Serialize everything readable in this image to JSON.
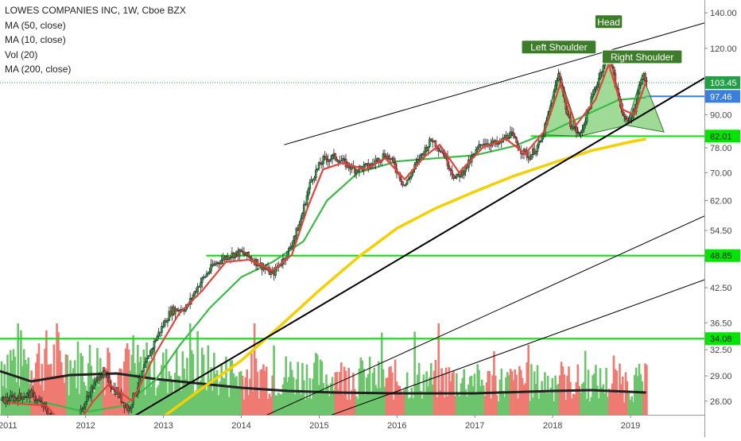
{
  "chart_data": {
    "type": "candlestick",
    "title": "LOWES COMPANIES INC, 1W, Cboe BZX",
    "indicators": [
      "MA (50, close)",
      "MA (10, close)",
      "Vol (20)",
      "MA (200, close)"
    ],
    "price_scale": "log",
    "ylim": [
      24.5,
      148
    ],
    "xlim": [
      2010.9,
      2019.95
    ],
    "y_ticks": [
      26.0,
      29.0,
      32.5,
      36.5,
      42.5,
      48.5,
      54.5,
      62.0,
      70.0,
      78.0,
      90.0,
      120.0,
      140.0
    ],
    "y_tick_labels": [
      "26.00",
      "29.00",
      "32.50",
      "36.50",
      "42.50",
      "48.50",
      "54.50",
      "62.00",
      "70.00",
      "78.00",
      "90.00",
      "120.00",
      "140.00"
    ],
    "x_ticks": [
      2011,
      2012,
      2013,
      2014,
      2015,
      2016,
      2017,
      2018,
      2019
    ],
    "x_tick_labels": [
      "2011",
      "2012",
      "2013",
      "2014",
      "2015",
      "2016",
      "2017",
      "2018",
      "2019"
    ],
    "price_path": [
      [
        2010.9,
        26.0
      ],
      [
        2011.3,
        26.8
      ],
      [
        2011.55,
        24.5
      ],
      [
        2011.75,
        21.0
      ],
      [
        2012.0,
        26.0
      ],
      [
        2012.2,
        29.5
      ],
      [
        2012.4,
        27.0
      ],
      [
        2012.55,
        25.0
      ],
      [
        2012.7,
        28.5
      ],
      [
        2012.9,
        34.0
      ],
      [
        2013.1,
        38.5
      ],
      [
        2013.3,
        39.0
      ],
      [
        2013.45,
        43.0
      ],
      [
        2013.65,
        47.0
      ],
      [
        2013.85,
        49.0
      ],
      [
        2014.0,
        49.5
      ],
      [
        2014.2,
        47.5
      ],
      [
        2014.4,
        45.0
      ],
      [
        2014.6,
        49.5
      ],
      [
        2014.75,
        56.0
      ],
      [
        2014.9,
        68.0
      ],
      [
        2015.05,
        74.0
      ],
      [
        2015.2,
        75.0
      ],
      [
        2015.45,
        71.0
      ],
      [
        2015.65,
        72.0
      ],
      [
        2015.85,
        76.0
      ],
      [
        2015.95,
        73.0
      ],
      [
        2016.1,
        66.0
      ],
      [
        2016.3,
        75.0
      ],
      [
        2016.45,
        81.0
      ],
      [
        2016.6,
        76.0
      ],
      [
        2016.75,
        68.0
      ],
      [
        2016.9,
        72.0
      ],
      [
        2017.1,
        80.0
      ],
      [
        2017.3,
        79.0
      ],
      [
        2017.45,
        83.0
      ],
      [
        2017.6,
        77.0
      ],
      [
        2017.7,
        75.0
      ],
      [
        2017.85,
        80.0
      ],
      [
        2017.97,
        92.0
      ],
      [
        2018.08,
        108.0
      ],
      [
        2018.2,
        88.0
      ],
      [
        2018.35,
        82.0
      ],
      [
        2018.5,
        96.0
      ],
      [
        2018.65,
        112.0
      ],
      [
        2018.72,
        118.0
      ],
      [
        2018.82,
        100.0
      ],
      [
        2018.95,
        86.0
      ],
      [
        2019.05,
        92.0
      ],
      [
        2019.15,
        107.0
      ],
      [
        2019.22,
        103.45
      ]
    ],
    "ma10_path": [
      [
        2011.0,
        25.8
      ],
      [
        2011.5,
        25.5
      ],
      [
        2011.8,
        22.5
      ],
      [
        2012.1,
        26.0
      ],
      [
        2012.3,
        28.0
      ],
      [
        2012.6,
        26.0
      ],
      [
        2012.9,
        32.0
      ],
      [
        2013.2,
        38.0
      ],
      [
        2013.5,
        42.0
      ],
      [
        2013.8,
        47.5
      ],
      [
        2014.1,
        48.0
      ],
      [
        2014.4,
        45.8
      ],
      [
        2014.65,
        49.0
      ],
      [
        2014.85,
        60.0
      ],
      [
        2015.05,
        71.0
      ],
      [
        2015.3,
        73.0
      ],
      [
        2015.6,
        71.0
      ],
      [
        2015.85,
        74.5
      ],
      [
        2016.1,
        68.0
      ],
      [
        2016.35,
        75.0
      ],
      [
        2016.55,
        79.0
      ],
      [
        2016.8,
        70.0
      ],
      [
        2017.1,
        78.0
      ],
      [
        2017.4,
        81.0
      ],
      [
        2017.65,
        76.0
      ],
      [
        2017.9,
        84.0
      ],
      [
        2018.1,
        103.0
      ],
      [
        2018.3,
        86.0
      ],
      [
        2018.55,
        96.0
      ],
      [
        2018.72,
        112.0
      ],
      [
        2018.9,
        92.0
      ],
      [
        2019.05,
        90.0
      ],
      [
        2019.2,
        104.0
      ]
    ],
    "ma50_path": [
      [
        2011.0,
        26.0
      ],
      [
        2011.5,
        25.8
      ],
      [
        2012.0,
        24.8
      ],
      [
        2012.5,
        25.5
      ],
      [
        2012.9,
        28.5
      ],
      [
        2013.2,
        33.0
      ],
      [
        2013.6,
        39.0
      ],
      [
        2014.0,
        44.5
      ],
      [
        2014.4,
        47.5
      ],
      [
        2014.8,
        52.0
      ],
      [
        2015.1,
        62.0
      ],
      [
        2015.5,
        70.0
      ],
      [
        2016.0,
        73.5
      ],
      [
        2016.5,
        74.5
      ],
      [
        2017.0,
        75.5
      ],
      [
        2017.5,
        78.5
      ],
      [
        2018.0,
        84.0
      ],
      [
        2018.5,
        91.0
      ],
      [
        2018.85,
        96.0
      ],
      [
        2019.2,
        97.0
      ]
    ],
    "ma200_path": [
      [
        2012.95,
        24.0
      ],
      [
        2013.5,
        27.5
      ],
      [
        2014.0,
        31.0
      ],
      [
        2014.5,
        36.0
      ],
      [
        2015.0,
        42.0
      ],
      [
        2015.5,
        48.5
      ],
      [
        2016.0,
        55.0
      ],
      [
        2016.5,
        60.0
      ],
      [
        2017.0,
        64.5
      ],
      [
        2017.5,
        69.0
      ],
      [
        2018.0,
        73.0
      ],
      [
        2018.5,
        77.0
      ],
      [
        2019.0,
        80.0
      ],
      [
        2019.2,
        81.0
      ]
    ],
    "volume_base": [
      2.2,
      2.0,
      1.8,
      1.8,
      1.6,
      1.6,
      1.5,
      1.4,
      1.4,
      1.3,
      1.3,
      1.3,
      1.3,
      1.3
    ],
    "volume_ma_path": [
      [
        2010.9,
        0.55
      ],
      [
        2011.3,
        0.42
      ],
      [
        2011.8,
        0.5
      ],
      [
        2012.4,
        0.52
      ],
      [
        2012.9,
        0.45
      ],
      [
        2013.4,
        0.4
      ],
      [
        2014.0,
        0.34
      ],
      [
        2014.6,
        0.3
      ],
      [
        2015.2,
        0.28
      ],
      [
        2016.0,
        0.27
      ],
      [
        2017.0,
        0.27
      ],
      [
        2018.0,
        0.3
      ],
      [
        2018.5,
        0.31
      ],
      [
        2019.2,
        0.28
      ]
    ],
    "trendlines": [
      {
        "name": "upper channel",
        "points": [
          [
            2014.55,
            79.0
          ],
          [
            2019.95,
            134.0
          ]
        ]
      },
      {
        "name": "rising support",
        "points": [
          [
            2012.55,
            24.0
          ],
          [
            2019.95,
            105.5
          ]
        ]
      },
      {
        "name": "lower channel 1",
        "points": [
          [
            2014.2,
            24.0
          ],
          [
            2019.95,
            58.0
          ]
        ]
      },
      {
        "name": "lower channel 2",
        "points": [
          [
            2015.0,
            24.0
          ],
          [
            2019.95,
            44.0
          ]
        ]
      }
    ],
    "horizontal_levels": [
      {
        "value": 34.08,
        "color": "#00e600",
        "from": 2010.9
      },
      {
        "value": 48.85,
        "color": "#00e600",
        "from": 2013.55
      },
      {
        "value": 82.01,
        "color": "#00e600",
        "from": 2017.72
      },
      {
        "value": 97.46,
        "color": "#3a7ee0",
        "from": 2019.2
      }
    ],
    "price_labels": [
      {
        "value": 103.45,
        "text": "103.45",
        "color": "#22a046"
      },
      {
        "value": 97.46,
        "text": "97.46",
        "color": "#3a7ee0"
      },
      {
        "value": 82.01,
        "text": "82.01",
        "color": "#00e600"
      },
      {
        "value": 48.85,
        "text": "48.85",
        "color": "#00e600"
      },
      {
        "value": 34.08,
        "text": "34.08",
        "color": "#00e600"
      }
    ],
    "pattern": {
      "name": "head and shoulders",
      "triangles": [
        [
          [
            2017.87,
            82.5
          ],
          [
            2018.08,
            108.0
          ],
          [
            2018.35,
            82.0
          ]
        ],
        [
          [
            2018.35,
            82.0
          ],
          [
            2018.72,
            118.0
          ],
          [
            2018.95,
            86.0
          ]
        ],
        [
          [
            2018.95,
            86.0
          ],
          [
            2019.15,
            107.0
          ],
          [
            2019.43,
            83.5
          ]
        ]
      ],
      "labels": [
        {
          "text": "Left Shoulder",
          "x": 2018.08,
          "y": 120.5
        },
        {
          "text": "Head",
          "x": 2018.72,
          "y": 134.5
        },
        {
          "text": "Right Shoulder",
          "x": 2019.15,
          "y": 115.5
        }
      ]
    },
    "current_price": 103.45,
    "grid": false,
    "colors": {
      "up": "#22a046",
      "down": "#e0443d",
      "ma10": "#e0443d",
      "ma50": "#3fb84a",
      "ma200": "#f5d000",
      "volume_ma": "#222222",
      "pattern_fill": "#5fc151",
      "pattern_line": "#2f7a2f",
      "trendline": "#000000",
      "label_bg": "#3d7d2a"
    }
  }
}
